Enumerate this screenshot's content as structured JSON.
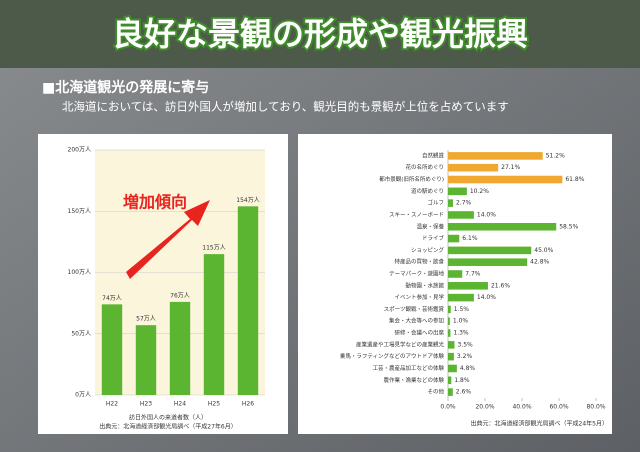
{
  "slide": {
    "title": "良好な景観の形成や観光振興",
    "heading": "■北海道観光の発展に寄与",
    "text": "北海道においては、訪日外国人が増加しており、観光目的も景観が上位を占めています"
  },
  "chart_data": [
    {
      "type": "bar",
      "categories": [
        "H22",
        "H23",
        "H24",
        "H25",
        "H26"
      ],
      "values": [
        74,
        57,
        76,
        115,
        154
      ],
      "value_labels": [
        "74万人",
        "57万人",
        "76万人",
        "115万人",
        "154万人"
      ],
      "color": "#5cb531",
      "ylim": [
        0,
        200
      ],
      "yticks": [
        {
          "value": 0,
          "label": "0万人"
        },
        {
          "value": 50,
          "label": "50万人"
        },
        {
          "value": 100,
          "label": "100万人"
        },
        {
          "value": 150,
          "label": "150万人"
        },
        {
          "value": 200,
          "label": "200万人"
        }
      ],
      "grid": true,
      "annotation": "増加傾向",
      "caption": "訪日外国人の来道者数（人）",
      "source": "出典元：北海道経済部観光局調べ（平成27年6月）"
    },
    {
      "type": "barh",
      "categories": [
        "自然観賞",
        "花の名所めぐり",
        "都市景観(旧所名所めぐり)",
        "道の駅めぐり",
        "ゴルフ",
        "スキー・スノーボード",
        "温泉・保養",
        "ドライブ",
        "ショッピング",
        "特産品の買物・飲食",
        "テーマパーク・遊園地",
        "動物園・水族館",
        "イベント参加・見学",
        "スポーツ観戦・芸術鑑賞",
        "集会・大会等への参加",
        "研修・会議への出席",
        "産業遺産や工場見学などの産業観光",
        "乗馬・ラフティングなどのアウトドア体験",
        "工芸・農産品加工などの体験",
        "農作業・漁業などの体験",
        "その他"
      ],
      "values": [
        51.2,
        27.1,
        61.8,
        10.2,
        2.7,
        14.0,
        58.5,
        6.1,
        45.0,
        42.8,
        7.7,
        21.6,
        14.0,
        1.5,
        1.0,
        1.3,
        3.5,
        3.2,
        4.8,
        1.8,
        2.6
      ],
      "value_labels": [
        "51.2%",
        "27.1%",
        "61.8%",
        "10.2%",
        "2.7%",
        "14.0%",
        "58.5%",
        "6.1%",
        "45.0%",
        "42.8%",
        "7.7%",
        "21.6%",
        "14.0%",
        "1.5%",
        "1.0%",
        "1.3%",
        "3.5%",
        "3.2%",
        "4.8%",
        "1.8%",
        "2.6%"
      ],
      "colors": [
        "#f0a830",
        "#f0a830",
        "#f0a830",
        "#5cb531",
        "#5cb531",
        "#5cb531",
        "#5cb531",
        "#5cb531",
        "#5cb531",
        "#5cb531",
        "#5cb531",
        "#5cb531",
        "#5cb531",
        "#5cb531",
        "#5cb531",
        "#5cb531",
        "#5cb531",
        "#5cb531",
        "#5cb531",
        "#5cb531",
        "#5cb531"
      ],
      "xlim": [
        0,
        80
      ],
      "xticks": [
        {
          "value": 0,
          "label": "0.0%"
        },
        {
          "value": 20,
          "label": "20.0%"
        },
        {
          "value": 40,
          "label": "40.0%"
        },
        {
          "value": 60,
          "label": "60.0%"
        },
        {
          "value": 80,
          "label": "80.0%"
        }
      ],
      "source": "出典元：北海道経済部観光局調べ（平成24年5月）"
    }
  ]
}
